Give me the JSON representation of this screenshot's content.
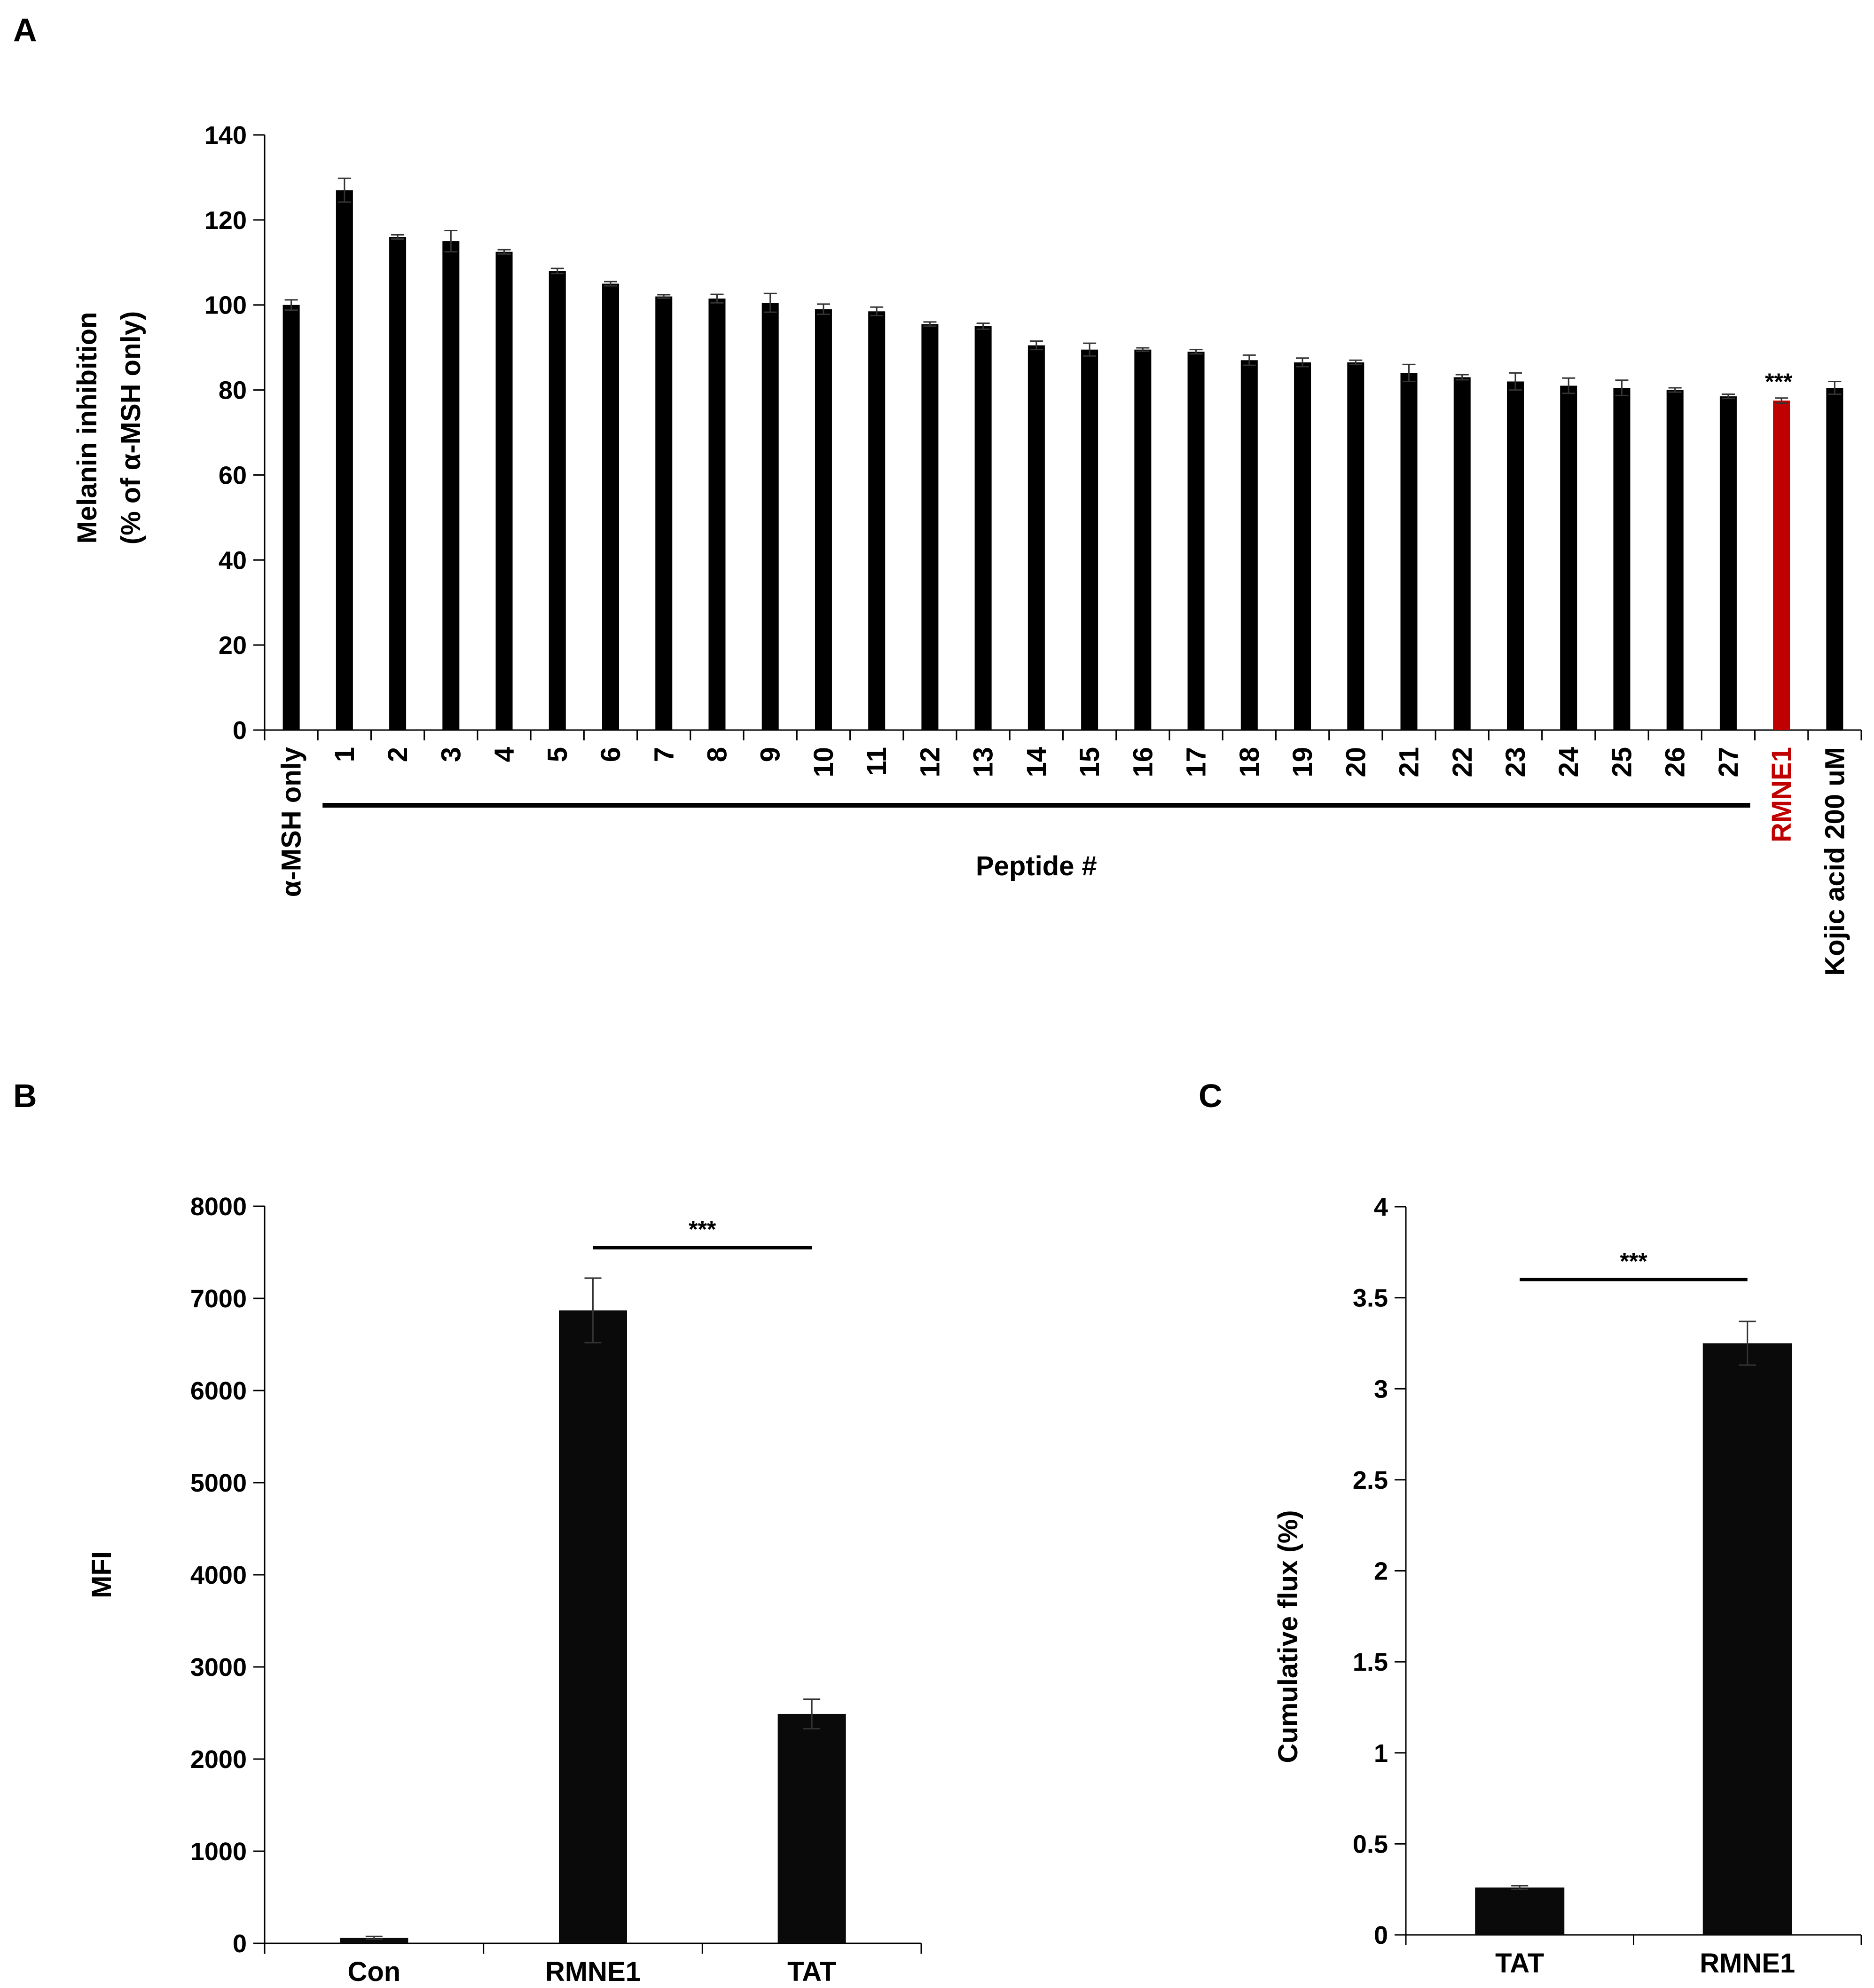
{
  "figure": {
    "panel_labels": [
      "A",
      "B",
      "C"
    ]
  },
  "chart_data": [
    {
      "panel": "A",
      "type": "bar",
      "title": "",
      "xlabel": "Peptide #",
      "ylabel": [
        "Melanin inhibition",
        "(% of α-MSH only)"
      ],
      "ylim": [
        0,
        140
      ],
      "yticks": [
        0,
        20,
        40,
        60,
        80,
        100,
        120,
        140
      ],
      "categories": [
        "α-MSH only",
        "1",
        "2",
        "3",
        "4",
        "5",
        "6",
        "7",
        "8",
        "9",
        "10",
        "11",
        "12",
        "13",
        "14",
        "15",
        "16",
        "17",
        "18",
        "19",
        "20",
        "21",
        "22",
        "23",
        "24",
        "25",
        "26",
        "27",
        "RMNE1",
        "Kojic acid 200 uM"
      ],
      "values": [
        100,
        127,
        116,
        115,
        112.5,
        108,
        105,
        102,
        101.5,
        100.5,
        99,
        98.5,
        95.5,
        95,
        90.5,
        89.5,
        89.5,
        89,
        87,
        86.5,
        86.5,
        84,
        83,
        82,
        81,
        80.5,
        80,
        78.5,
        77.5,
        80.5
      ],
      "errors": [
        1.2,
        2.8,
        0.5,
        2.5,
        0.5,
        0.6,
        0.5,
        0.4,
        1.0,
        2.2,
        1.2,
        1.0,
        0.5,
        0.7,
        1.0,
        1.5,
        0.4,
        0.5,
        1.2,
        1.0,
        0.5,
        2.0,
        0.6,
        2.0,
        1.8,
        1.8,
        0.5,
        0.5,
        0.6,
        1.5
      ],
      "bar_colors": [
        "#000000",
        "#000000",
        "#000000",
        "#000000",
        "#000000",
        "#000000",
        "#000000",
        "#000000",
        "#000000",
        "#000000",
        "#000000",
        "#000000",
        "#000000",
        "#000000",
        "#000000",
        "#000000",
        "#000000",
        "#000000",
        "#000000",
        "#000000",
        "#000000",
        "#000000",
        "#000000",
        "#000000",
        "#000000",
        "#000000",
        "#000000",
        "#000000",
        "#c00000",
        "#000000"
      ],
      "label_colors": [
        "#000000",
        "#000000",
        "#000000",
        "#000000",
        "#000000",
        "#000000",
        "#000000",
        "#000000",
        "#000000",
        "#000000",
        "#000000",
        "#000000",
        "#000000",
        "#000000",
        "#000000",
        "#000000",
        "#000000",
        "#000000",
        "#000000",
        "#000000",
        "#000000",
        "#000000",
        "#000000",
        "#000000",
        "#000000",
        "#000000",
        "#000000",
        "#000000",
        "#c00000",
        "#000000"
      ],
      "group_bracket": {
        "from": "1",
        "to": "27",
        "label": "Peptide #"
      },
      "annotations": [
        {
          "category": "RMNE1",
          "text": "***"
        }
      ]
    },
    {
      "panel": "B",
      "type": "bar",
      "title": "",
      "xlabel": "",
      "ylabel": "MFI",
      "ylim": [
        0,
        8000
      ],
      "yticks": [
        0,
        1000,
        2000,
        3000,
        4000,
        5000,
        6000,
        7000,
        8000
      ],
      "categories": [
        "Con",
        "RMNE1",
        "TAT"
      ],
      "values": [
        60,
        6870,
        2490
      ],
      "errors": [
        15,
        350,
        160
      ],
      "bar_colors": [
        "#0a0a0a",
        "#0a0a0a",
        "#0a0a0a"
      ],
      "significance": [
        {
          "from": "RMNE1",
          "to": "TAT",
          "text": "***",
          "level": 7550
        }
      ]
    },
    {
      "panel": "C",
      "type": "bar",
      "title": "",
      "xlabel": "",
      "ylabel": "Cumulative flux (%)",
      "ylim": [
        0,
        4
      ],
      "yticks": [
        "0",
        "0.5",
        "1",
        "1.5",
        "2",
        "2.5",
        "3",
        "3.5",
        "4"
      ],
      "categories": [
        "TAT",
        "RMNE1"
      ],
      "values": [
        0.26,
        3.25
      ],
      "errors": [
        0.01,
        0.12
      ],
      "bar_colors": [
        "#0a0a0a",
        "#0a0a0a"
      ],
      "significance": [
        {
          "from": "TAT",
          "to": "RMNE1",
          "text": "***",
          "level": 3.6
        }
      ]
    }
  ]
}
